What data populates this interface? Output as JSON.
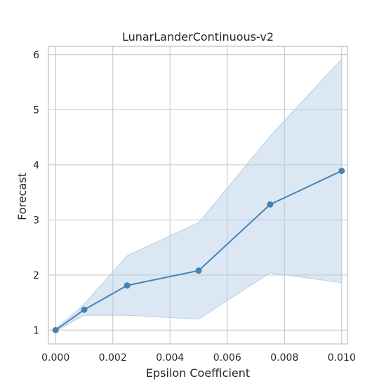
{
  "chart_data": {
    "type": "line",
    "title": "LunarLanderContinuous-v2",
    "xlabel": "Epsilon Coefficient",
    "ylabel": "Forecast",
    "x": [
      0.0,
      0.001,
      0.0025,
      0.005,
      0.0075,
      0.01
    ],
    "series": [
      {
        "values": [
          1.0,
          1.37,
          1.81,
          2.08,
          3.28,
          3.89
        ],
        "lower": [
          0.98,
          1.27,
          1.27,
          1.2,
          2.04,
          1.86
        ],
        "upper": [
          1.02,
          1.47,
          2.35,
          2.95,
          4.52,
          5.92
        ],
        "color": "#4682b4",
        "band_color": "#b8cfe5"
      }
    ],
    "xticks": [
      "0.000",
      "0.002",
      "0.004",
      "0.006",
      "0.008",
      "0.010"
    ],
    "xtick_values": [
      0.0,
      0.002,
      0.004,
      0.006,
      0.008,
      0.01
    ],
    "yticks": [
      "1",
      "2",
      "3",
      "4",
      "5",
      "6"
    ],
    "ytick_values": [
      1,
      2,
      3,
      4,
      5,
      6
    ],
    "xlim": [
      -0.00025,
      0.0102
    ],
    "ylim": [
      0.75,
      6.15
    ],
    "grid": true,
    "legend": "none"
  },
  "colors": {
    "grid": "#cccccc",
    "spine": "#cccccc",
    "background": "#ffffff"
  }
}
